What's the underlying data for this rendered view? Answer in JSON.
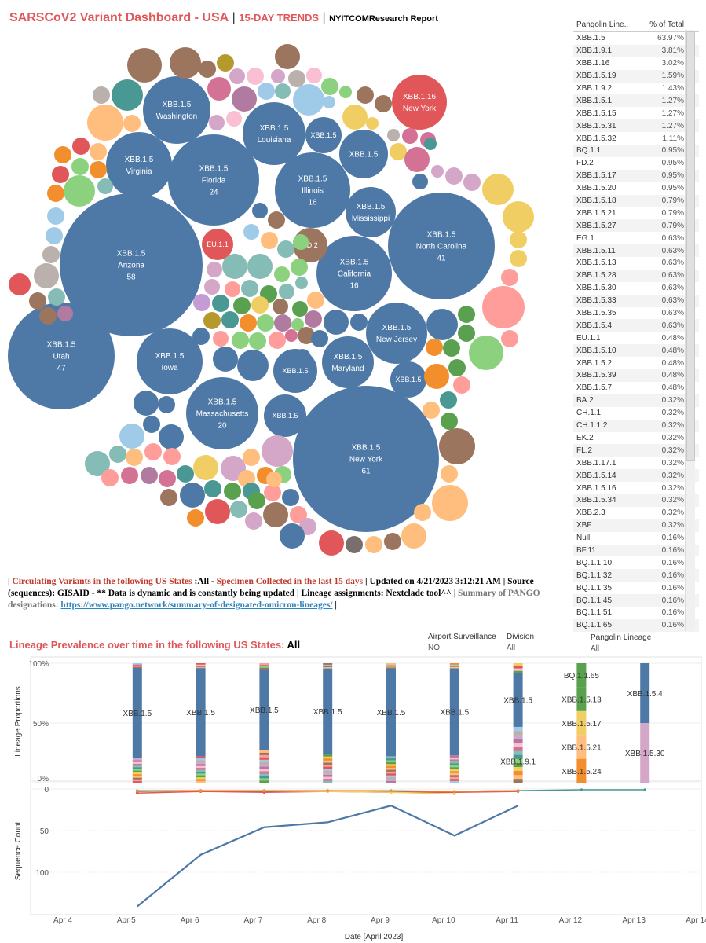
{
  "header": {
    "title": "SARSCoV2 Variant Dashboard - USA",
    "sep": " | ",
    "trend": "15-DAY TRENDS",
    "sep2": " | ",
    "report": "NYITCOMResearch Report"
  },
  "colors": {
    "blue": "#4e79a7",
    "red": "#e15759",
    "brown": "#9c755f",
    "orange": "#f28e2b",
    "lightorange": "#ffbe7d",
    "teal": "#499894",
    "lightteal": "#86bcb6",
    "green": "#59a14f",
    "lightgreen": "#8cd17d",
    "yellow": "#f1ce63",
    "olive": "#b6992d",
    "pink": "#d37295",
    "lightpink": "#fabfd2",
    "mauve": "#b07aa1",
    "lightmauve": "#d4a6c8",
    "grey": "#bab0ac",
    "lightblue": "#a0cbe8",
    "salmon": "#ff9d9a",
    "purple": "#c49bd4",
    "darkgrey": "#79706e"
  },
  "bubbles": [
    {
      "label": "XBB.1.5",
      "state": "Arizona",
      "count": "58",
      "color": "blue"
    },
    {
      "label": "XBB.1.5",
      "state": "New York",
      "count": "61",
      "color": "blue"
    },
    {
      "label": "XBB.1.5",
      "state": "Utah",
      "count": "47",
      "color": "blue"
    },
    {
      "label": "XBB.1.5",
      "state": "North Carolina",
      "count": "41",
      "color": "blue"
    },
    {
      "label": "XBB.1.5",
      "state": "Florida",
      "count": "24",
      "color": "blue"
    },
    {
      "label": "XBB.1.5",
      "state": "Massachusetts",
      "count": "20",
      "color": "blue"
    },
    {
      "label": "XBB.1.5",
      "state": "Illinois",
      "count": "16",
      "color": "blue"
    },
    {
      "label": "XBB.1.5",
      "state": "California",
      "count": "16",
      "color": "blue"
    },
    {
      "label": "XBB.1.5",
      "state": "Washington",
      "count": "",
      "color": "blue"
    },
    {
      "label": "XBB.1.5",
      "state": "Virginia",
      "count": "",
      "color": "blue"
    },
    {
      "label": "XBB.1.5",
      "state": "Louisiana",
      "count": "",
      "color": "blue"
    },
    {
      "label": "XBB.1.5",
      "state": "Iowa",
      "count": "",
      "color": "blue"
    },
    {
      "label": "XBB.1.5",
      "state": "Maryland",
      "count": "",
      "color": "blue"
    },
    {
      "label": "XBB.1.5",
      "state": "New Jersey",
      "count": "",
      "color": "blue"
    },
    {
      "label": "XBB.1.5",
      "state": "Mississippi",
      "count": "",
      "color": "blue"
    },
    {
      "label": "XBB.1.16",
      "state": "New York",
      "count": "",
      "color": "red"
    },
    {
      "label": "XBB.1.5",
      "state": "",
      "count": "",
      "color": "blue"
    },
    {
      "label": "XBB.1.5",
      "state": "",
      "count": "",
      "color": "blue"
    },
    {
      "label": "XBB.1.5",
      "state": "",
      "count": "",
      "color": "blue"
    },
    {
      "label": "XBB.1.5",
      "state": "",
      "count": "",
      "color": "blue"
    },
    {
      "label": "XBB.1.5",
      "state": "",
      "count": "",
      "color": "blue"
    },
    {
      "label": "FD.2",
      "state": "",
      "count": "",
      "color": "brown"
    },
    {
      "label": "EU.1.1",
      "state": "",
      "count": "",
      "color": "red"
    }
  ],
  "lineage_table": {
    "headers": [
      "Pangolin Line..",
      "% of Total"
    ],
    "rows": [
      [
        "XBB.1.5",
        "63.97%"
      ],
      [
        "XBB.1.9.1",
        "3.81%"
      ],
      [
        "XBB.1.16",
        "3.02%"
      ],
      [
        "XBB.1.5.19",
        "1.59%"
      ],
      [
        "XBB.1.9.2",
        "1.43%"
      ],
      [
        "XBB.1.5.1",
        "1.27%"
      ],
      [
        "XBB.1.5.15",
        "1.27%"
      ],
      [
        "XBB.1.5.31",
        "1.27%"
      ],
      [
        "XBB.1.5.32",
        "1.11%"
      ],
      [
        "BQ.1.1",
        "0.95%"
      ],
      [
        "FD.2",
        "0.95%"
      ],
      [
        "XBB.1.5.17",
        "0.95%"
      ],
      [
        "XBB.1.5.20",
        "0.95%"
      ],
      [
        "XBB.1.5.18",
        "0.79%"
      ],
      [
        "XBB.1.5.21",
        "0.79%"
      ],
      [
        "XBB.1.5.27",
        "0.79%"
      ],
      [
        "EG.1",
        "0.63%"
      ],
      [
        "XBB.1.5.11",
        "0.63%"
      ],
      [
        "XBB.1.5.13",
        "0.63%"
      ],
      [
        "XBB.1.5.28",
        "0.63%"
      ],
      [
        "XBB.1.5.30",
        "0.63%"
      ],
      [
        "XBB.1.5.33",
        "0.63%"
      ],
      [
        "XBB.1.5.35",
        "0.63%"
      ],
      [
        "XBB.1.5.4",
        "0.63%"
      ],
      [
        "EU.1.1",
        "0.48%"
      ],
      [
        "XBB.1.5.10",
        "0.48%"
      ],
      [
        "XBB.1.5.2",
        "0.48%"
      ],
      [
        "XBB.1.5.39",
        "0.48%"
      ],
      [
        "XBB.1.5.7",
        "0.48%"
      ],
      [
        "BA.2",
        "0.32%"
      ],
      [
        "CH.1.1",
        "0.32%"
      ],
      [
        "CH.1.1.2",
        "0.32%"
      ],
      [
        "EK.2",
        "0.32%"
      ],
      [
        "FL.2",
        "0.32%"
      ],
      [
        "XBB.1.17.1",
        "0.32%"
      ],
      [
        "XBB.1.5.14",
        "0.32%"
      ],
      [
        "XBB.1.5.16",
        "0.32%"
      ],
      [
        "XBB.1.5.34",
        "0.32%"
      ],
      [
        "XBB.2.3",
        "0.32%"
      ],
      [
        "XBF",
        "0.32%"
      ],
      [
        "Null",
        "0.16%"
      ],
      [
        "BF.11",
        "0.16%"
      ],
      [
        "BQ.1.1.10",
        "0.16%"
      ],
      [
        "BQ.1.1.32",
        "0.16%"
      ],
      [
        "BQ.1.1.35",
        "0.16%"
      ],
      [
        "BQ.1.1.45",
        "0.16%"
      ],
      [
        "BQ.1.1.51",
        "0.16%"
      ],
      [
        "BQ.1.1.65",
        "0.16%"
      ]
    ]
  },
  "subtitle": {
    "p1": "| ",
    "p2": "Circulating Variants in the following US States",
    "p3": " :All - ",
    "p4": "Specimen Collected in the last 15 days",
    "p5": " | Updated on 4/21/2023 3:12:21 AM | Source (sequences): GISAID - ** Data is dynamic and is constantly being updated | Lineage assignments: Nextclade tool^^",
    "p6": " | Summary of PANGO designations:",
    "link": "https://www.pango.network/summary-of-designated-omicron-lineages/",
    "p7": " |"
  },
  "section2": {
    "title": "Lineage Prevalence over time in the following US States: ",
    "value": "All"
  },
  "filters": {
    "airport_label": "Airport Surveillance",
    "airport_value": "NO",
    "division_label": "Division",
    "division_value": "All",
    "pangolin_label": "Pangolin Lineage",
    "pangolin_value": "All"
  },
  "chart_data": [
    {
      "type": "bar",
      "stacked": true,
      "ylabel": "Lineage Proportions",
      "yticks": [
        "100%",
        "50%",
        "0%"
      ],
      "categories": [
        "Apr 5",
        "Apr 6",
        "Apr 7",
        "Apr 8",
        "Apr 9",
        "Apr 10",
        "Apr 11",
        "Apr 12",
        "Apr 13"
      ],
      "dominant_labels": [
        "XBB.1.5",
        "XBB.1.5",
        "XBB.1.5",
        "XBB.1.5",
        "XBB.1.5",
        "XBB.1.5",
        "XBB.1.5",
        "",
        "XBB.1.5.4"
      ],
      "dominant_share": [
        0.76,
        0.74,
        0.68,
        0.72,
        0.74,
        0.73,
        0.45,
        0,
        0.5
      ],
      "segment_labels": [
        {
          "date": "Apr 11",
          "label": "XBB.1.9.1",
          "value": 0.2
        },
        {
          "date": "Apr 12",
          "label": "BQ.1.1.65",
          "value": 0.2
        },
        {
          "date": "Apr 12",
          "label": "XBB.1.5.13",
          "value": 0.2
        },
        {
          "date": "Apr 12",
          "label": "XBB.1.5.17",
          "value": 0.2
        },
        {
          "date": "Apr 12",
          "label": "XBB.1.5.21",
          "value": 0.2
        },
        {
          "date": "Apr 12",
          "label": "XBB.1.5.24",
          "value": 0.2
        },
        {
          "date": "Apr 13",
          "label": "XBB.1.5.30",
          "value": 0.5
        }
      ]
    },
    {
      "type": "line",
      "ylabel": "Sequence Count",
      "xlabel": "Date [April 2023]",
      "yticks": [
        "0",
        "50",
        "100"
      ],
      "ylim": [
        0,
        140
      ],
      "y_reversed": true,
      "xticks": [
        "Apr 4",
        "Apr 5",
        "Apr 6",
        "Apr 7",
        "Apr 8",
        "Apr 9",
        "Apr 10",
        "Apr 11",
        "Apr 12",
        "Apr 13",
        "Apr 14"
      ],
      "series": [
        {
          "color": "blue",
          "dates": [
            "Apr 5",
            "Apr 6",
            "Apr 7",
            "Apr 8",
            "Apr 9",
            "Apr 10",
            "Apr 11"
          ],
          "values": [
            141,
            79,
            46,
            40,
            20,
            56,
            20
          ]
        },
        {
          "color": "teal",
          "dates": [
            "Apr 5",
            "Apr 6",
            "Apr 7",
            "Apr 8",
            "Apr 9",
            "Apr 10",
            "Apr 11",
            "Apr 12",
            "Apr 13"
          ],
          "values": [
            3,
            2,
            3,
            2,
            3,
            3,
            2,
            1,
            1
          ]
        },
        {
          "color": "red",
          "dates": [
            "Apr 5",
            "Apr 6",
            "Apr 7",
            "Apr 8",
            "Apr 9",
            "Apr 10",
            "Apr 11"
          ],
          "values": [
            5,
            3,
            4,
            3,
            4,
            4,
            3
          ]
        },
        {
          "color": "yellow",
          "dates": [
            "Apr 5",
            "Apr 6",
            "Apr 7",
            "Apr 8",
            "Apr 9",
            "Apr 10"
          ],
          "values": [
            2,
            2,
            2,
            3,
            4,
            6
          ]
        },
        {
          "color": "orange",
          "dates": [
            "Apr 5",
            "Apr 6",
            "Apr 7",
            "Apr 8",
            "Apr 9",
            "Apr 10",
            "Apr 11"
          ],
          "values": [
            2,
            2,
            2,
            2,
            2,
            3,
            2
          ]
        }
      ]
    }
  ]
}
